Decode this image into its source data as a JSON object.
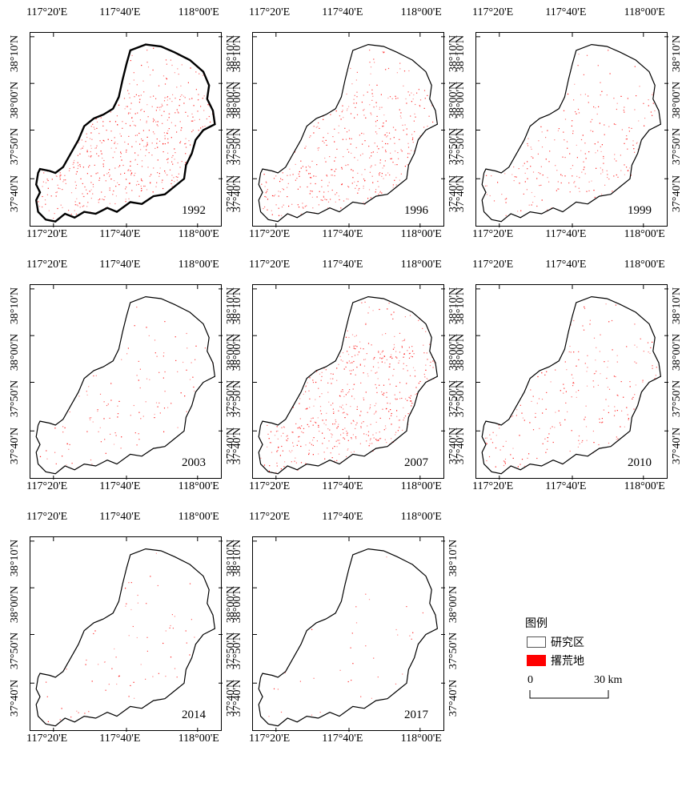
{
  "panels": [
    {
      "year": "1992",
      "outline": "bold"
    },
    {
      "year": "1996",
      "outline": "normal"
    },
    {
      "year": "1999",
      "outline": "normal"
    },
    {
      "year": "2003",
      "outline": "normal"
    },
    {
      "year": "2007",
      "outline": "normal"
    },
    {
      "year": "2010",
      "outline": "normal"
    },
    {
      "year": "2014",
      "outline": "normal"
    },
    {
      "year": "2017",
      "outline": "normal"
    }
  ],
  "axis": {
    "lon_labels": [
      "117°20'E",
      "117°40'E",
      "118°00'E"
    ],
    "lat_labels": [
      "37°40'N",
      "37°50'N",
      "38°00'N",
      "38°10'N"
    ]
  },
  "legend": {
    "title": "图例",
    "items": [
      {
        "label": "研究区",
        "color": "#ffffff"
      },
      {
        "label": "撂荒地",
        "color": "#ff0000"
      }
    ],
    "scale_start": "0",
    "scale_end": "30 km"
  },
  "colors": {
    "abandoned": "#ff0000",
    "outline": "#000000"
  }
}
